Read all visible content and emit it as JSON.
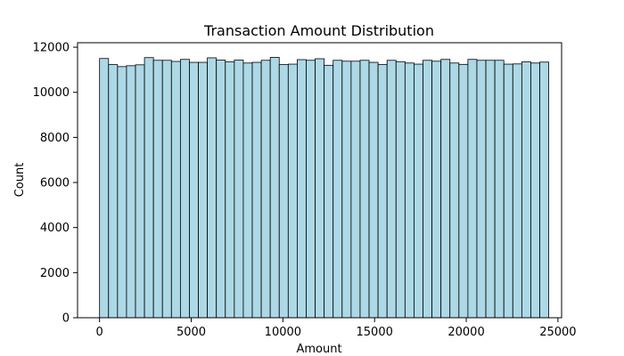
{
  "chart_data": {
    "type": "bar",
    "title": "Transaction Amount Distribution",
    "xlabel": "Amount",
    "ylabel": "Count",
    "xlim": [
      -1200,
      25200
    ],
    "ylim": [
      0,
      12200
    ],
    "xticks": [
      0,
      5000,
      10000,
      15000,
      20000,
      25000
    ],
    "yticks": [
      0,
      2000,
      4000,
      6000,
      8000,
      10000,
      12000
    ],
    "bin_start": 0,
    "bin_width": 490,
    "values": [
      11500,
      11230,
      11140,
      11180,
      11220,
      11540,
      11420,
      11420,
      11370,
      11460,
      11330,
      11330,
      11530,
      11430,
      11350,
      11430,
      11300,
      11330,
      11420,
      11550,
      11230,
      11250,
      11450,
      11420,
      11490,
      11200,
      11420,
      11380,
      11380,
      11420,
      11330,
      11230,
      11420,
      11360,
      11300,
      11250,
      11420,
      11380,
      11460,
      11300,
      11240,
      11460,
      11420,
      11420,
      11420,
      11250,
      11260,
      11350,
      11300,
      11340
    ],
    "bar_color": "#add8e6",
    "bar_edge_color": "#000000",
    "grid": false
  }
}
